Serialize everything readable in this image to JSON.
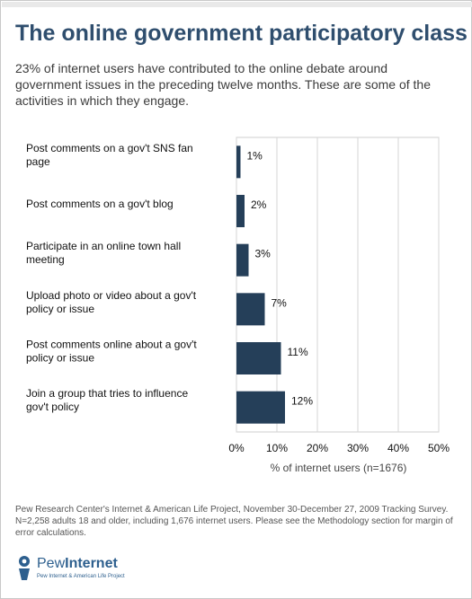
{
  "header": {
    "title": "The online government participatory class",
    "subtitle": "23% of internet users have contributed to the online debate around government issues in the preceding twelve months. These are some of the activities in which they engage."
  },
  "chart_data": {
    "type": "bar",
    "orientation": "horizontal",
    "categories": [
      [
        "Post comments on a gov't SNS fan",
        "page"
      ],
      [
        "Post comments on a gov't blog"
      ],
      [
        "Participate in an online town hall",
        "meeting"
      ],
      [
        "Upload photo or video about a gov't",
        "policy or issue"
      ],
      [
        "Post comments online about a gov't",
        "policy or issue"
      ],
      [
        "Join a group that tries to influence",
        "gov't policy"
      ]
    ],
    "values": [
      1,
      2,
      3,
      7,
      11,
      12
    ],
    "value_labels": [
      "1%",
      "2%",
      "3%",
      "7%",
      "11%",
      "12%"
    ],
    "xticks": [
      "0%",
      "10%",
      "20%",
      "30%",
      "40%",
      "50%"
    ],
    "xlim": [
      0,
      50
    ],
    "xlabel": "% of internet users (n=1676)",
    "grid": true,
    "bar_color": "#253f59"
  },
  "footer": {
    "source": "Pew Research Center's Internet & American Life Project, November 30-December 27, 2009 Tracking Survey. N=2,258 adults 18 and older, including 1,676 internet users. Please see the Methodology section for margin of error calculations.",
    "logo_word_1": "Pew",
    "logo_word_2": "Internet",
    "logo_tagline": "Pew Internet & American Life Project"
  },
  "colors": {
    "title": "#2f4e6e",
    "bar": "#253f59",
    "logo": "#2d5f8e"
  }
}
